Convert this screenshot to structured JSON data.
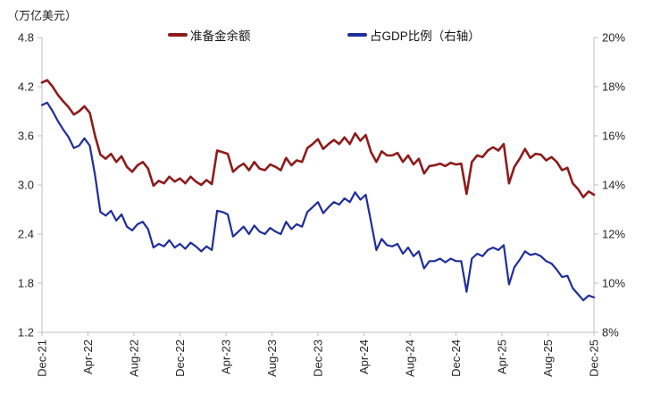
{
  "chart": {
    "unit_label": "（万亿美元）",
    "colors": {
      "axis_line": "#BFBFBF",
      "tick_text": "#262626",
      "reserve_red": "#8E1B1B",
      "gdp_blue": "#1F2D9B"
    }
  },
  "chart_data": {
    "type": "line",
    "title": "",
    "legend_position": "top",
    "grid": false,
    "x_axis": {
      "labels": [
        "Dec-21",
        "Apr-22",
        "Aug-22",
        "Dec-22",
        "Apr-23",
        "Aug-23",
        "Dec-23",
        "Apr-24",
        "Aug-24",
        "Dec-24",
        "Apr-25",
        "Aug-25",
        "Dec-25"
      ]
    },
    "left_axis": {
      "unit": "万亿美元",
      "min": 1.2,
      "max": 4.8,
      "ticks": [
        "4.8",
        "4.2",
        "3.6",
        "3.0",
        "2.4",
        "1.8",
        "1.2"
      ]
    },
    "right_axis": {
      "min": 8,
      "max": 20,
      "ticks": [
        "20%",
        "18%",
        "16%",
        "14%",
        "12%",
        "10%",
        "8%"
      ]
    },
    "series": [
      {
        "name": "准备金余额",
        "axis": "left",
        "color": "#8E1B1B",
        "values": [
          4.25,
          4.28,
          4.2,
          4.1,
          4.02,
          3.95,
          3.86,
          3.9,
          3.96,
          3.88,
          3.6,
          3.37,
          3.32,
          3.38,
          3.28,
          3.35,
          3.22,
          3.16,
          3.24,
          3.28,
          3.2,
          2.99,
          3.05,
          3.02,
          3.1,
          3.04,
          3.08,
          3.02,
          3.1,
          3.04,
          3.0,
          3.06,
          3.01,
          3.42,
          3.4,
          3.38,
          3.16,
          3.22,
          3.26,
          3.18,
          3.28,
          3.2,
          3.18,
          3.25,
          3.22,
          3.18,
          3.33,
          3.24,
          3.3,
          3.28,
          3.45,
          3.5,
          3.56,
          3.44,
          3.5,
          3.55,
          3.5,
          3.58,
          3.5,
          3.63,
          3.54,
          3.61,
          3.4,
          3.28,
          3.41,
          3.36,
          3.36,
          3.39,
          3.28,
          3.36,
          3.25,
          3.32,
          3.14,
          3.23,
          3.24,
          3.26,
          3.23,
          3.27,
          3.25,
          3.26,
          2.89,
          3.28,
          3.36,
          3.34,
          3.42,
          3.46,
          3.42,
          3.5,
          3.02,
          3.22,
          3.32,
          3.44,
          3.33,
          3.38,
          3.37,
          3.3,
          3.34,
          3.28,
          3.18,
          3.21,
          3.02,
          2.95,
          2.85,
          2.92,
          2.88
        ]
      },
      {
        "name": "占GDP比例（右轴）",
        "axis": "right",
        "color": "#1F2D9B",
        "values": [
          17.25,
          17.35,
          17.0,
          16.6,
          16.25,
          15.95,
          15.5,
          15.6,
          15.9,
          15.6,
          14.4,
          12.9,
          12.75,
          12.95,
          12.55,
          12.8,
          12.3,
          12.15,
          12.4,
          12.5,
          12.2,
          11.45,
          11.6,
          11.5,
          11.75,
          11.45,
          11.6,
          11.4,
          11.65,
          11.5,
          11.3,
          11.5,
          11.35,
          12.95,
          12.9,
          12.8,
          11.9,
          12.1,
          12.3,
          12.0,
          12.35,
          12.1,
          12.0,
          12.25,
          12.1,
          12.0,
          12.5,
          12.2,
          12.4,
          12.3,
          12.9,
          13.1,
          13.3,
          12.85,
          13.1,
          13.3,
          13.2,
          13.45,
          13.3,
          13.7,
          13.4,
          13.6,
          12.5,
          11.35,
          11.8,
          11.55,
          11.5,
          11.6,
          11.2,
          11.45,
          11.1,
          11.3,
          10.6,
          10.9,
          10.9,
          11.0,
          10.85,
          11.0,
          10.9,
          10.9,
          9.65,
          11.0,
          11.2,
          11.1,
          11.35,
          11.45,
          11.35,
          11.55,
          9.95,
          10.65,
          10.95,
          11.3,
          11.15,
          11.2,
          11.1,
          10.9,
          10.8,
          10.55,
          10.25,
          10.3,
          9.8,
          9.55,
          9.3,
          9.5,
          9.42
        ]
      }
    ]
  }
}
